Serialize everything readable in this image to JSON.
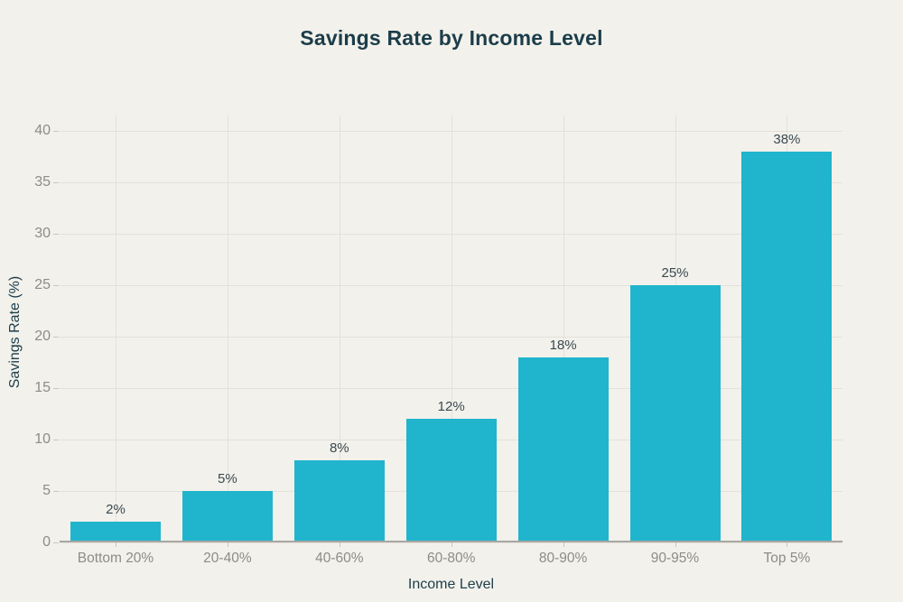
{
  "chart_data": {
    "type": "bar",
    "title": "Savings Rate by Income Level",
    "xlabel": "Income Level",
    "ylabel": "Savings Rate (%)",
    "categories": [
      "Bottom 20%",
      "20-40%",
      "40-60%",
      "60-80%",
      "80-90%",
      "90-95%",
      "Top 5%"
    ],
    "values": [
      2,
      5,
      8,
      12,
      18,
      25,
      38
    ],
    "value_labels": [
      "2%",
      "5%",
      "8%",
      "12%",
      "18%",
      "25%",
      "38%"
    ],
    "y_ticks": [
      0,
      5,
      10,
      15,
      20,
      25,
      30,
      35,
      40
    ],
    "ylim": [
      0,
      41.5
    ],
    "grid": true,
    "legend": "none",
    "colors": {
      "bar": "#21b4cd",
      "background": "#f2f1eb",
      "title_text": "#1c3d4a",
      "axis_title_text": "#1c3d4a",
      "tick_text": "#8d8c88",
      "data_label_text": "#3a4a51",
      "gridline": "#e3e1da",
      "axis_line": "#a9a7a2",
      "tick_mark": "#c8c6c0"
    }
  }
}
